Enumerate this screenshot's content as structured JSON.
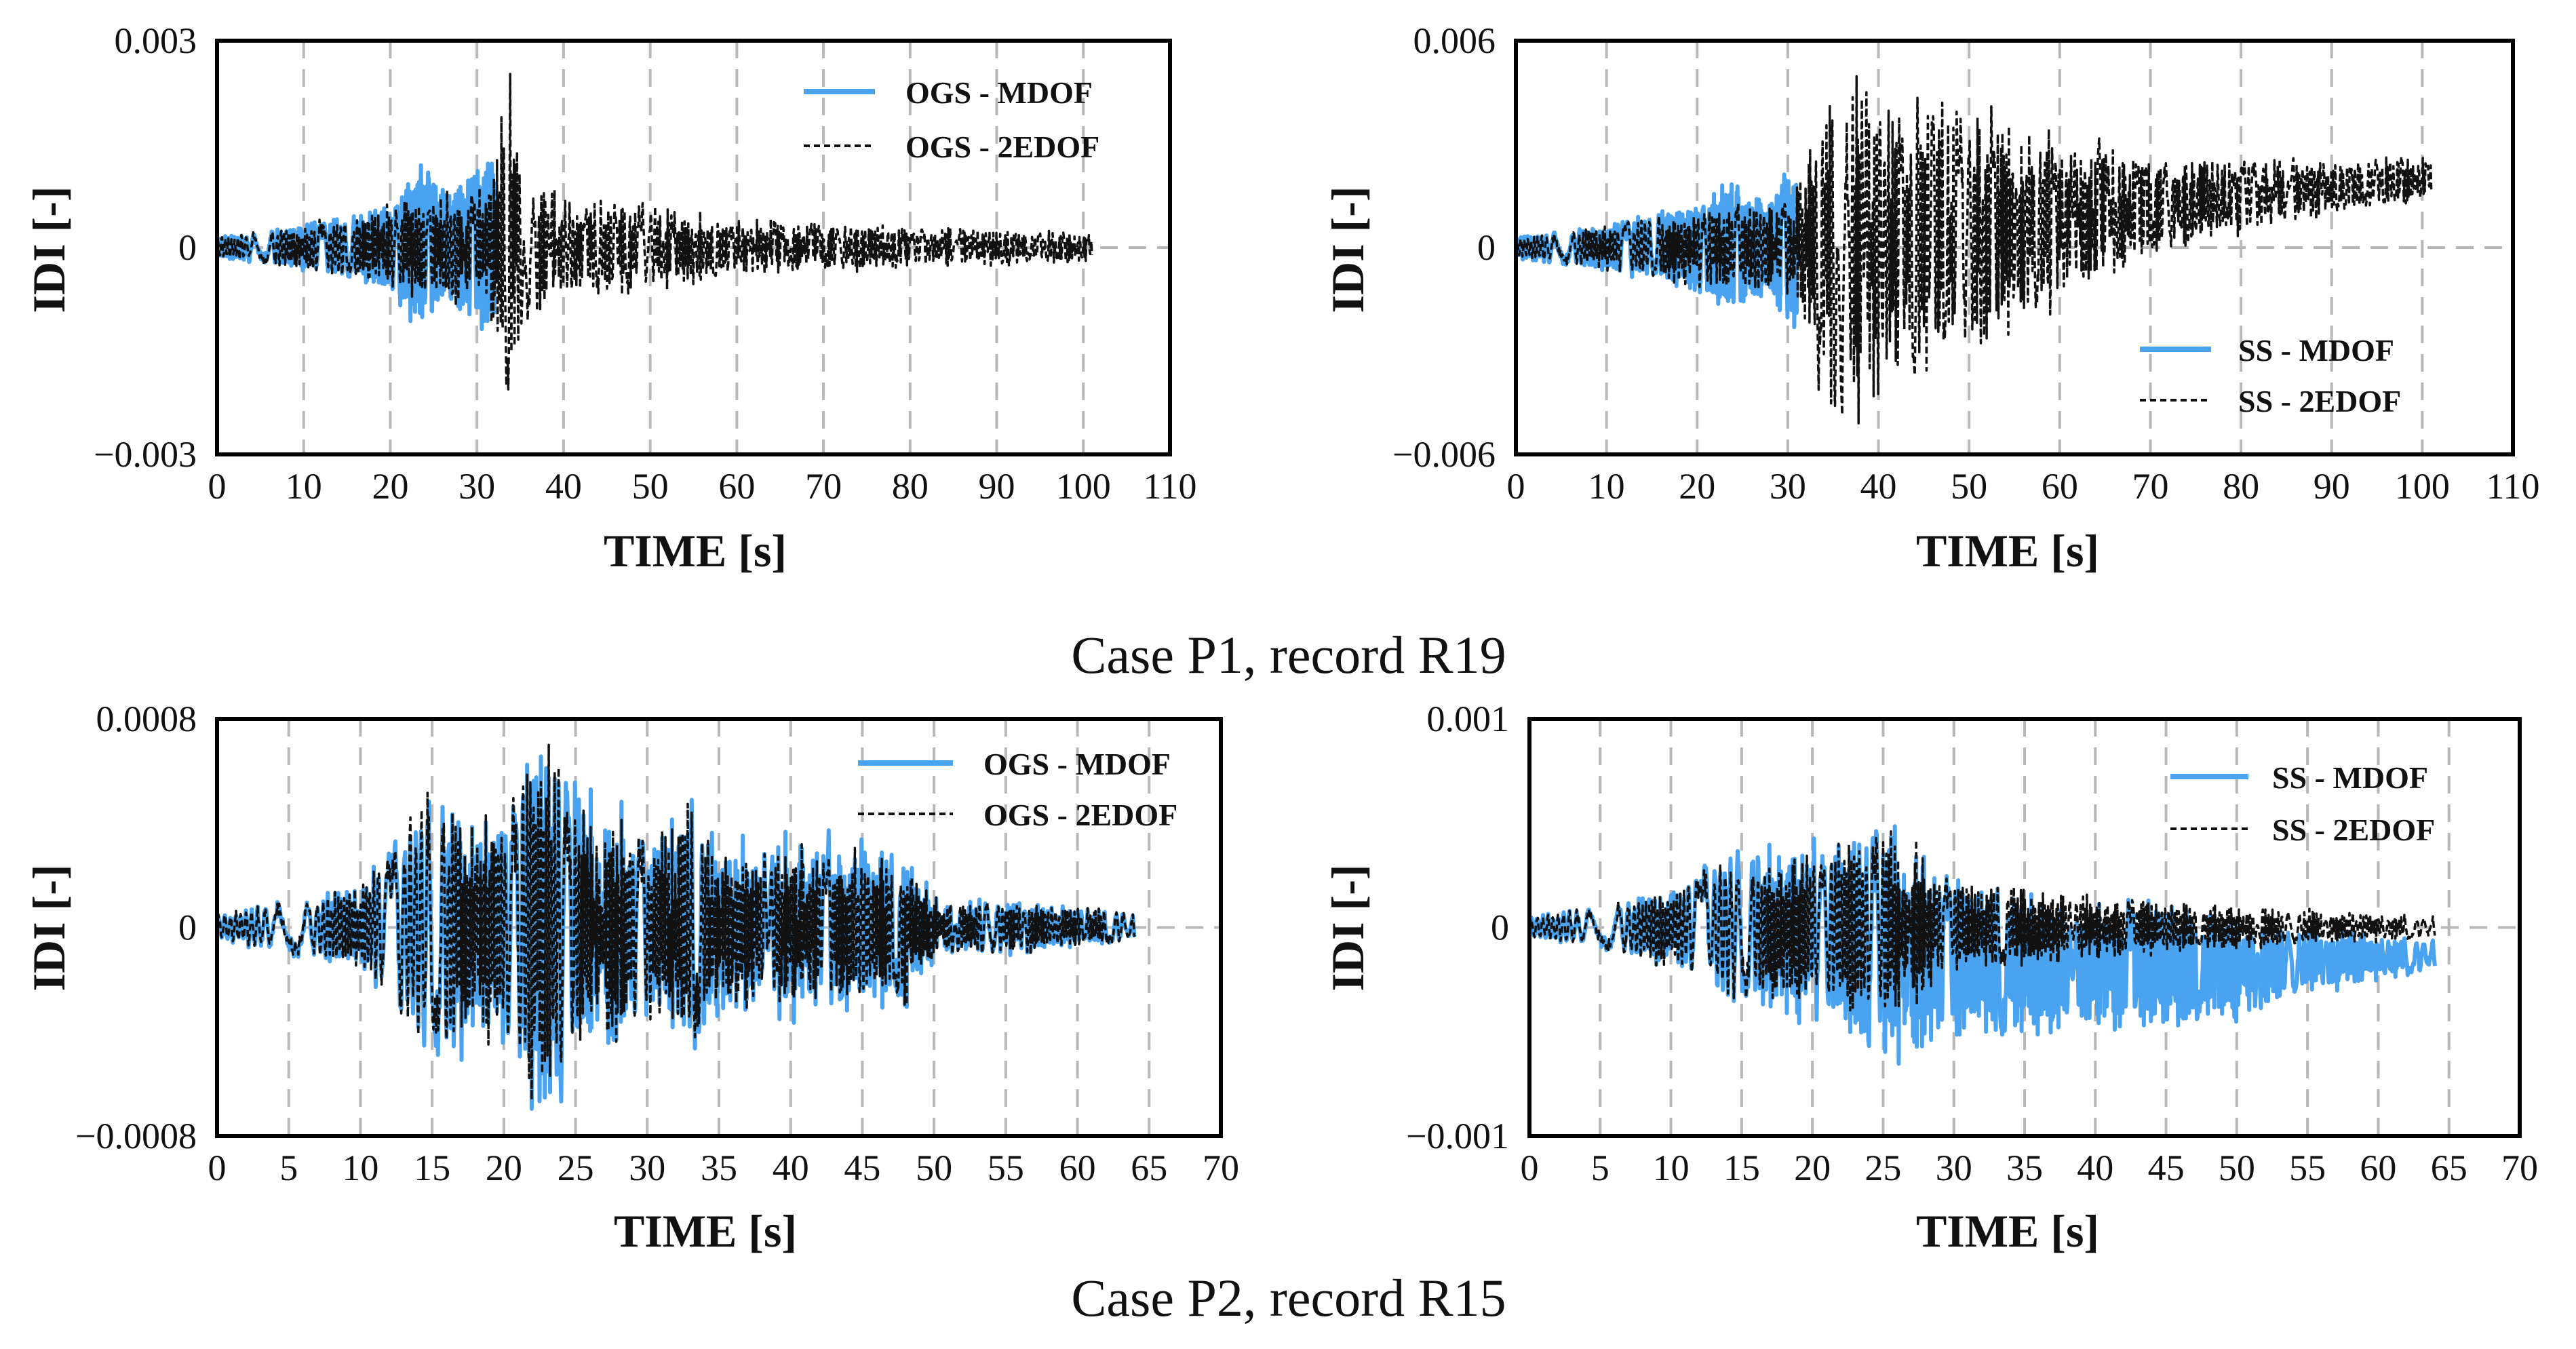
{
  "captions": {
    "top": "Case P1, record R19",
    "bottom": "Case P2, record R15"
  },
  "colors": {
    "mdof": "#4aa3f0",
    "edof": "#111111"
  },
  "chart_data": [
    {
      "id": "p1_ogs",
      "type": "line",
      "xlabel": "TIME [s]",
      "ylabel": "IDI [-]",
      "xlim": [
        0,
        110
      ],
      "xticks": [
        0,
        10,
        20,
        30,
        40,
        50,
        60,
        70,
        80,
        90,
        100,
        110
      ],
      "ylim": [
        -0.003,
        0.003
      ],
      "yticks": [
        -0.003,
        0,
        0.003
      ],
      "ytick_labels": [
        "−0.003",
        "0",
        "0.003"
      ],
      "legend": "top-right",
      "series": [
        {
          "name": "OGS - MDOF",
          "style": "solid",
          "envelope_t": [
            0,
            5,
            10,
            15,
            20,
            22,
            23.5,
            25,
            27,
            29,
            31,
            32
          ],
          "envelope_amp": [
            0.00015,
            0.0002,
            0.0003,
            0.0004,
            0.0006,
            0.0009,
            0.0012,
            0.001,
            0.0008,
            0.0009,
            0.0012,
            0.0012
          ]
        },
        {
          "name": "OGS - 2EDOF",
          "style": "dashed",
          "envelope_t": [
            0,
            10,
            20,
            25,
            30,
            32,
            33.5,
            35,
            40,
            50,
            60,
            80,
            101
          ],
          "envelope_amp": [
            0.00015,
            0.0003,
            0.0006,
            0.0008,
            0.0008,
            0.0012,
            0.0025,
            0.0012,
            0.0007,
            0.0006,
            0.0004,
            0.0003,
            0.0002
          ]
        }
      ]
    },
    {
      "id": "p1_ss",
      "type": "line",
      "xlabel": "TIME [s]",
      "ylabel": "IDI [-]",
      "xlim": [
        0,
        110
      ],
      "xticks": [
        0,
        10,
        20,
        30,
        40,
        50,
        60,
        70,
        80,
        90,
        100,
        110
      ],
      "ylim": [
        -0.006,
        0.006
      ],
      "yticks": [
        -0.006,
        0,
        0.006
      ],
      "ytick_labels": [
        "−0.006",
        "0",
        "0.006"
      ],
      "legend": "bottom-right",
      "series": [
        {
          "name": "SS - MDOF",
          "style": "solid",
          "envelope_t": [
            0,
            10,
            20,
            23.5,
            25,
            28,
            31
          ],
          "envelope_amp": [
            0.0003,
            0.0006,
            0.0012,
            0.0018,
            0.0014,
            0.0014,
            0.0024
          ]
        },
        {
          "name": "SS - 2EDOF",
          "style": "dashed",
          "envelope_t": [
            0,
            10,
            20,
            30,
            33,
            35,
            40,
            50,
            60,
            70,
            80,
            90,
            101
          ],
          "envelope_amp": [
            0.0003,
            0.0006,
            0.0012,
            0.0014,
            0.0035,
            0.005,
            0.0045,
            0.0035,
            0.0025,
            0.0015,
            0.001,
            0.0008,
            0.0006
          ],
          "drift_t": [
            0,
            30,
            45,
            60,
            80,
            101
          ],
          "drift_val": [
            0,
            0,
            0.0003,
            0.0008,
            0.0015,
            0.002
          ]
        }
      ]
    },
    {
      "id": "p2_ogs",
      "type": "line",
      "xlabel": "TIME [s]",
      "ylabel": "IDI [-]",
      "xlim": [
        0,
        70
      ],
      "xticks": [
        0,
        5,
        10,
        15,
        20,
        25,
        30,
        35,
        40,
        45,
        50,
        55,
        60,
        65,
        70
      ],
      "ylim": [
        -0.0008,
        0.0008
      ],
      "yticks": [
        -0.0008,
        0,
        0.0008
      ],
      "ytick_labels": [
        "−0.0008",
        "0",
        "0.0008"
      ],
      "legend": "top-right",
      "series": [
        {
          "name": "OGS - MDOF",
          "style": "solid",
          "envelope_t": [
            0,
            5,
            10,
            12,
            15,
            18,
            20,
            22.5,
            25,
            27,
            30,
            33,
            35,
            40,
            45,
            48,
            50,
            55,
            60,
            64
          ],
          "envelope_amp": [
            5e-05,
            0.0001,
            0.00015,
            0.0003,
            0.00055,
            0.0004,
            0.0005,
            0.00075,
            0.00055,
            0.0005,
            0.00035,
            0.0005,
            0.0003,
            0.00035,
            0.0003,
            0.0003,
            0.00012,
            0.0001,
            8e-05,
            5e-05
          ]
        },
        {
          "name": "OGS - 2EDOF",
          "style": "dashed",
          "envelope_t": [
            0,
            5,
            10,
            12,
            15,
            18,
            20,
            22.5,
            25,
            27,
            30,
            33,
            35,
            40,
            45,
            48,
            50,
            55,
            60,
            64
          ],
          "envelope_amp": [
            5e-05,
            0.0001,
            0.00015,
            0.0003,
            0.00052,
            0.00038,
            0.00048,
            0.0007,
            0.0005,
            0.00045,
            0.00032,
            0.00048,
            0.00028,
            0.00032,
            0.00028,
            0.00028,
            0.00011,
            0.0001,
            8e-05,
            5e-05
          ]
        }
      ]
    },
    {
      "id": "p2_ss",
      "type": "line",
      "xlabel": "TIME [s]",
      "ylabel": "IDI [-]",
      "xlim": [
        0,
        70
      ],
      "xticks": [
        0,
        5,
        10,
        15,
        20,
        25,
        30,
        35,
        40,
        45,
        50,
        55,
        60,
        65,
        70
      ],
      "ylim": [
        -0.001,
        0.001
      ],
      "yticks": [
        -0.001,
        0,
        0.001
      ],
      "ytick_labels": [
        "−0.001",
        "0",
        "0.001"
      ],
      "legend": "top-right",
      "series": [
        {
          "name": "SS - MDOF",
          "style": "solid",
          "envelope_t": [
            0,
            5,
            10,
            15,
            20,
            22.5,
            26,
            30,
            35,
            40,
            45,
            50,
            55,
            60,
            64
          ],
          "envelope_amp": [
            5e-05,
            0.0001,
            0.00018,
            0.0004,
            0.0004,
            0.0005,
            0.0006,
            0.00035,
            0.00035,
            0.0003,
            0.0003,
            0.00025,
            0.00015,
            0.0001,
            7e-05
          ],
          "drift_t": [
            0,
            20,
            25,
            30,
            40,
            50,
            64
          ],
          "drift_val": [
            0,
            0,
            -0.0001,
            -0.00015,
            -0.0002,
            -0.00018,
            -0.00013
          ]
        },
        {
          "name": "SS - 2EDOF",
          "style": "dashed",
          "envelope_t": [
            0,
            5,
            10,
            15,
            20,
            22.5,
            26,
            30,
            35,
            40,
            45,
            50,
            55,
            60,
            64
          ],
          "envelope_amp": [
            5e-05,
            0.0001,
            0.00018,
            0.00035,
            0.00035,
            0.00042,
            0.00045,
            0.0002,
            0.0002,
            0.00015,
            0.00012,
            0.0001,
            8e-05,
            6e-05,
            5e-05
          ]
        }
      ]
    }
  ]
}
